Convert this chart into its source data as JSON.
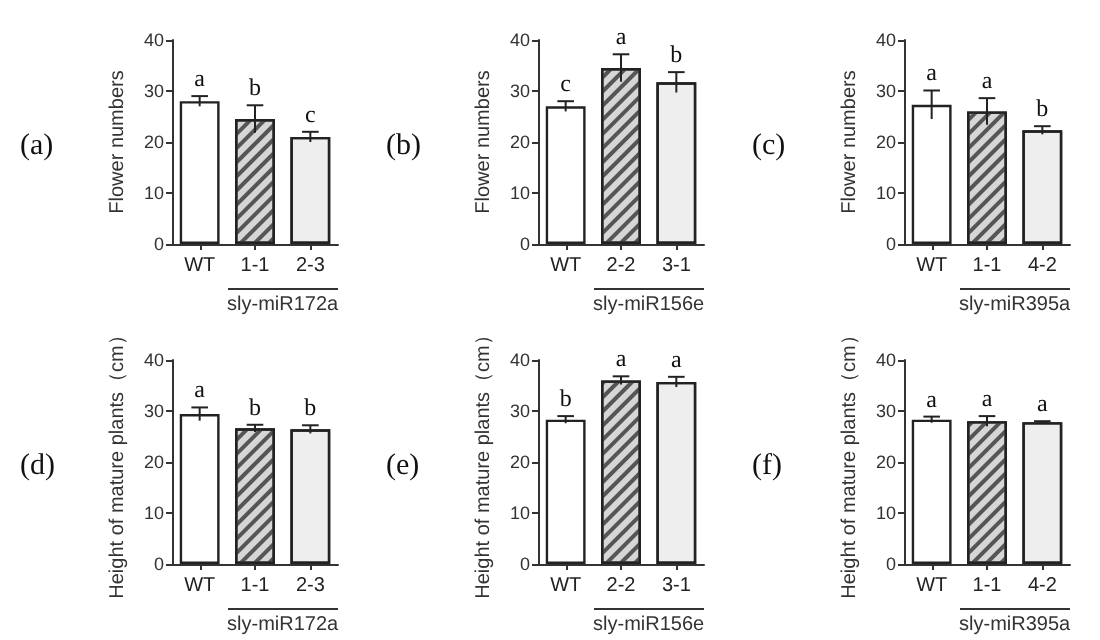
{
  "chart_data": [
    {
      "type": "bar",
      "title": "(a)",
      "ylabel": "Flower numbers",
      "xlabel": "sly-miR172a",
      "categories": [
        "WT",
        "1-1",
        "2-3"
      ],
      "values": [
        28,
        24.5,
        21
      ],
      "errors": [
        1,
        2.7,
        1
      ],
      "value_labels": [
        "a",
        "b",
        "c"
      ],
      "colors": [
        "#ffffff",
        "#d6d6d6",
        "#eeeeee"
      ],
      "ylim": [
        0,
        40
      ],
      "yticks": [
        0,
        10,
        20,
        30,
        40
      ],
      "grid": false
    },
    {
      "type": "bar",
      "title": "(b)",
      "ylabel": "Flower numbers",
      "xlabel": "sly-miR156e",
      "categories": [
        "WT",
        "2-2",
        "3-1"
      ],
      "values": [
        27,
        34.5,
        31.7
      ],
      "errors": [
        1,
        2.7,
        2
      ],
      "value_labels": [
        "c",
        "a",
        "b"
      ],
      "colors": [
        "#ffffff",
        "#d6d6d6",
        "#eeeeee"
      ],
      "ylim": [
        0,
        40
      ],
      "yticks": [
        0,
        10,
        20,
        30,
        40
      ],
      "grid": false
    },
    {
      "type": "bar",
      "title": "(c)",
      "ylabel": "Flower numbers",
      "xlabel": "sly-miR395a",
      "categories": [
        "WT",
        "1-1",
        "4-2"
      ],
      "values": [
        27.3,
        26,
        22.3
      ],
      "errors": [
        2.8,
        2.6,
        0.8
      ],
      "value_labels": [
        "a",
        "a",
        "b"
      ],
      "colors": [
        "#ffffff",
        "#d6d6d6",
        "#eeeeee"
      ],
      "ylim": [
        0,
        40
      ],
      "yticks": [
        0,
        10,
        20,
        30,
        40
      ],
      "grid": false
    },
    {
      "type": "bar",
      "title": "(d)",
      "ylabel": "Height of mature plants（cm）",
      "xlabel": "sly-miR172a",
      "categories": [
        "WT",
        "1-1",
        "2-3"
      ],
      "values": [
        29.4,
        26.6,
        26.4
      ],
      "errors": [
        1.3,
        0.7,
        0.8
      ],
      "value_labels": [
        "a",
        "b",
        "b"
      ],
      "colors": [
        "#ffffff",
        "#d6d6d6",
        "#eeeeee"
      ],
      "ylim": [
        0,
        40
      ],
      "yticks": [
        0,
        10,
        20,
        30,
        40
      ],
      "grid": false
    },
    {
      "type": "bar",
      "title": "(e)",
      "ylabel": "Height of mature plants（cm）",
      "xlabel": "sly-miR156e",
      "categories": [
        "WT",
        "2-2",
        "3-1"
      ],
      "values": [
        28.3,
        36,
        35.7
      ],
      "errors": [
        0.7,
        0.8,
        1
      ],
      "value_labels": [
        "b",
        "a",
        "a"
      ],
      "colors": [
        "#ffffff",
        "#d6d6d6",
        "#eeeeee"
      ],
      "ylim": [
        0,
        40
      ],
      "yticks": [
        0,
        10,
        20,
        30,
        40
      ],
      "grid": false
    },
    {
      "type": "bar",
      "title": "(f)",
      "ylabel": "Height of mature plants（cm）",
      "xlabel": "sly-miR395a",
      "categories": [
        "WT",
        "1-1",
        "4-2"
      ],
      "values": [
        28.3,
        28,
        27.8
      ],
      "errors": [
        0.6,
        1,
        0.2
      ],
      "value_labels": [
        "a",
        "a",
        "a"
      ],
      "colors": [
        "#ffffff",
        "#d6d6d6",
        "#eeeeee"
      ],
      "ylim": [
        0,
        40
      ],
      "yticks": [
        0,
        10,
        20,
        30,
        40
      ],
      "grid": false
    }
  ]
}
